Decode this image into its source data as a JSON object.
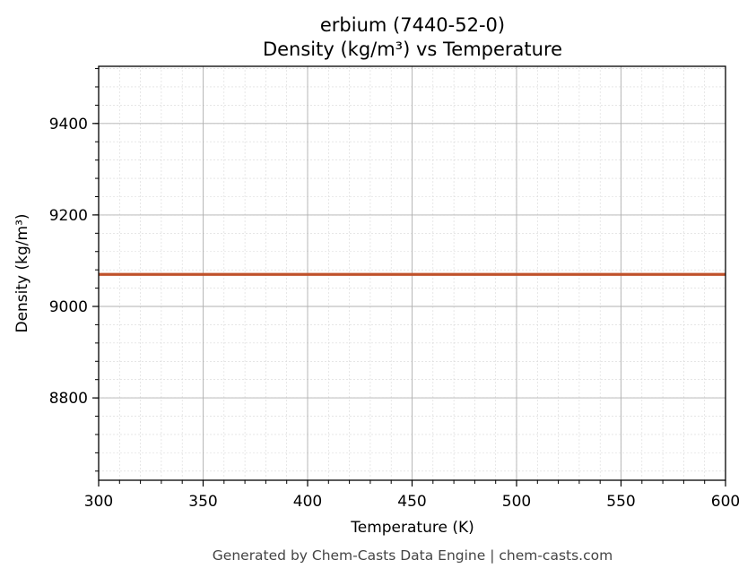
{
  "chart_data": {
    "type": "line",
    "title_line1": "erbium (7440-52-0)",
    "title_line2": "Density (kg/m³) vs Temperature",
    "xlabel": "Temperature (K)",
    "ylabel": "Density (kg/m³)",
    "xlim": [
      300,
      600
    ],
    "ylim": [
      8620,
      9525
    ],
    "x_ticks": [
      300,
      350,
      400,
      450,
      500,
      550,
      600
    ],
    "y_ticks": [
      8800,
      9000,
      9200,
      9400
    ],
    "grid": true,
    "series": [
      {
        "x": [
          300,
          600
        ],
        "y": [
          9070,
          9070
        ],
        "color": "#c0522b"
      }
    ]
  },
  "footer": "Generated by Chem-Casts Data Engine | chem-casts.com"
}
